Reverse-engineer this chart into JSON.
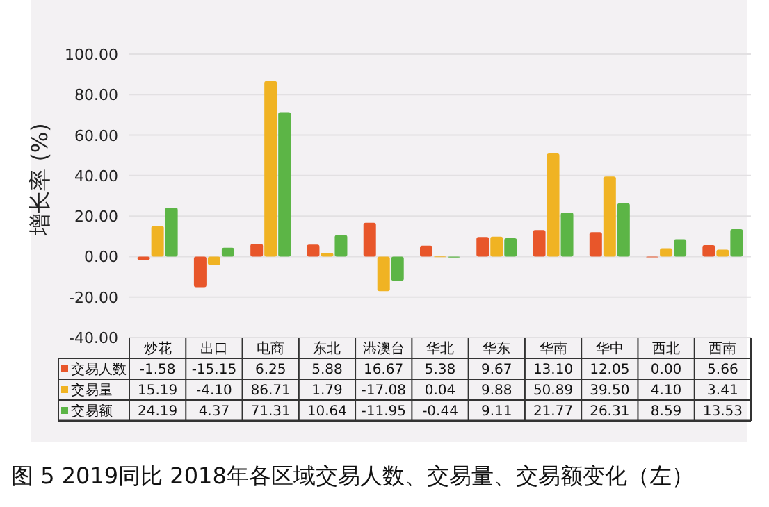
{
  "chart_data": {
    "type": "bar",
    "ylabel": "增长率 (%)",
    "categories": [
      "炒花",
      "出口",
      "电商",
      "东北",
      "港澳台",
      "华北",
      "华东",
      "华南",
      "华中",
      "西北",
      "西南"
    ],
    "series": [
      {
        "name": "交易人数",
        "color": "#e8562a",
        "values": [
          -1.58,
          -15.15,
          6.25,
          5.88,
          16.67,
          5.38,
          9.67,
          13.1,
          12.05,
          0.0,
          5.66
        ]
      },
      {
        "name": "交易量",
        "color": "#f0b323",
        "values": [
          15.19,
          -4.1,
          86.71,
          1.79,
          -17.08,
          0.04,
          9.88,
          50.89,
          39.5,
          4.1,
          3.41
        ]
      },
      {
        "name": "交易额",
        "color": "#5cb546",
        "values": [
          24.19,
          4.37,
          71.31,
          10.64,
          -11.95,
          -0.44,
          9.11,
          21.77,
          26.31,
          8.59,
          13.53
        ]
      }
    ],
    "value_labels": [
      [
        "-1.58",
        "-15.15",
        "6.25",
        "5.88",
        "16.67",
        "5.38",
        "9.67",
        "13.10",
        "12.05",
        "0.00",
        "5.66"
      ],
      [
        "15.19",
        "-4.10",
        "86.71",
        "1.79",
        "-17.08",
        "0.04",
        "9.88",
        "50.89",
        "39.50",
        "4.10",
        "3.41"
      ],
      [
        "24.19",
        "4.37",
        "71.31",
        "10.64",
        "-11.95",
        "-0.44",
        "9.11",
        "21.77",
        "26.31",
        "8.59",
        "13.53"
      ]
    ],
    "ylim": [
      -40,
      100
    ],
    "yticks": [
      {
        "value": -40,
        "label": "-40.00"
      },
      {
        "value": -20,
        "label": "-20.00"
      },
      {
        "value": 0,
        "label": "0.00"
      },
      {
        "value": 20,
        "label": "20.00"
      },
      {
        "value": 40,
        "label": "40.00"
      },
      {
        "value": 60,
        "label": "60.00"
      },
      {
        "value": 80,
        "label": "80.00"
      },
      {
        "value": 100,
        "label": "100.00"
      }
    ],
    "grid": "y",
    "legend": "bottom",
    "annotations": [
      "图 5  2019同比 2018年各区域交易人数、交易量、交易额变化（左）"
    ]
  }
}
